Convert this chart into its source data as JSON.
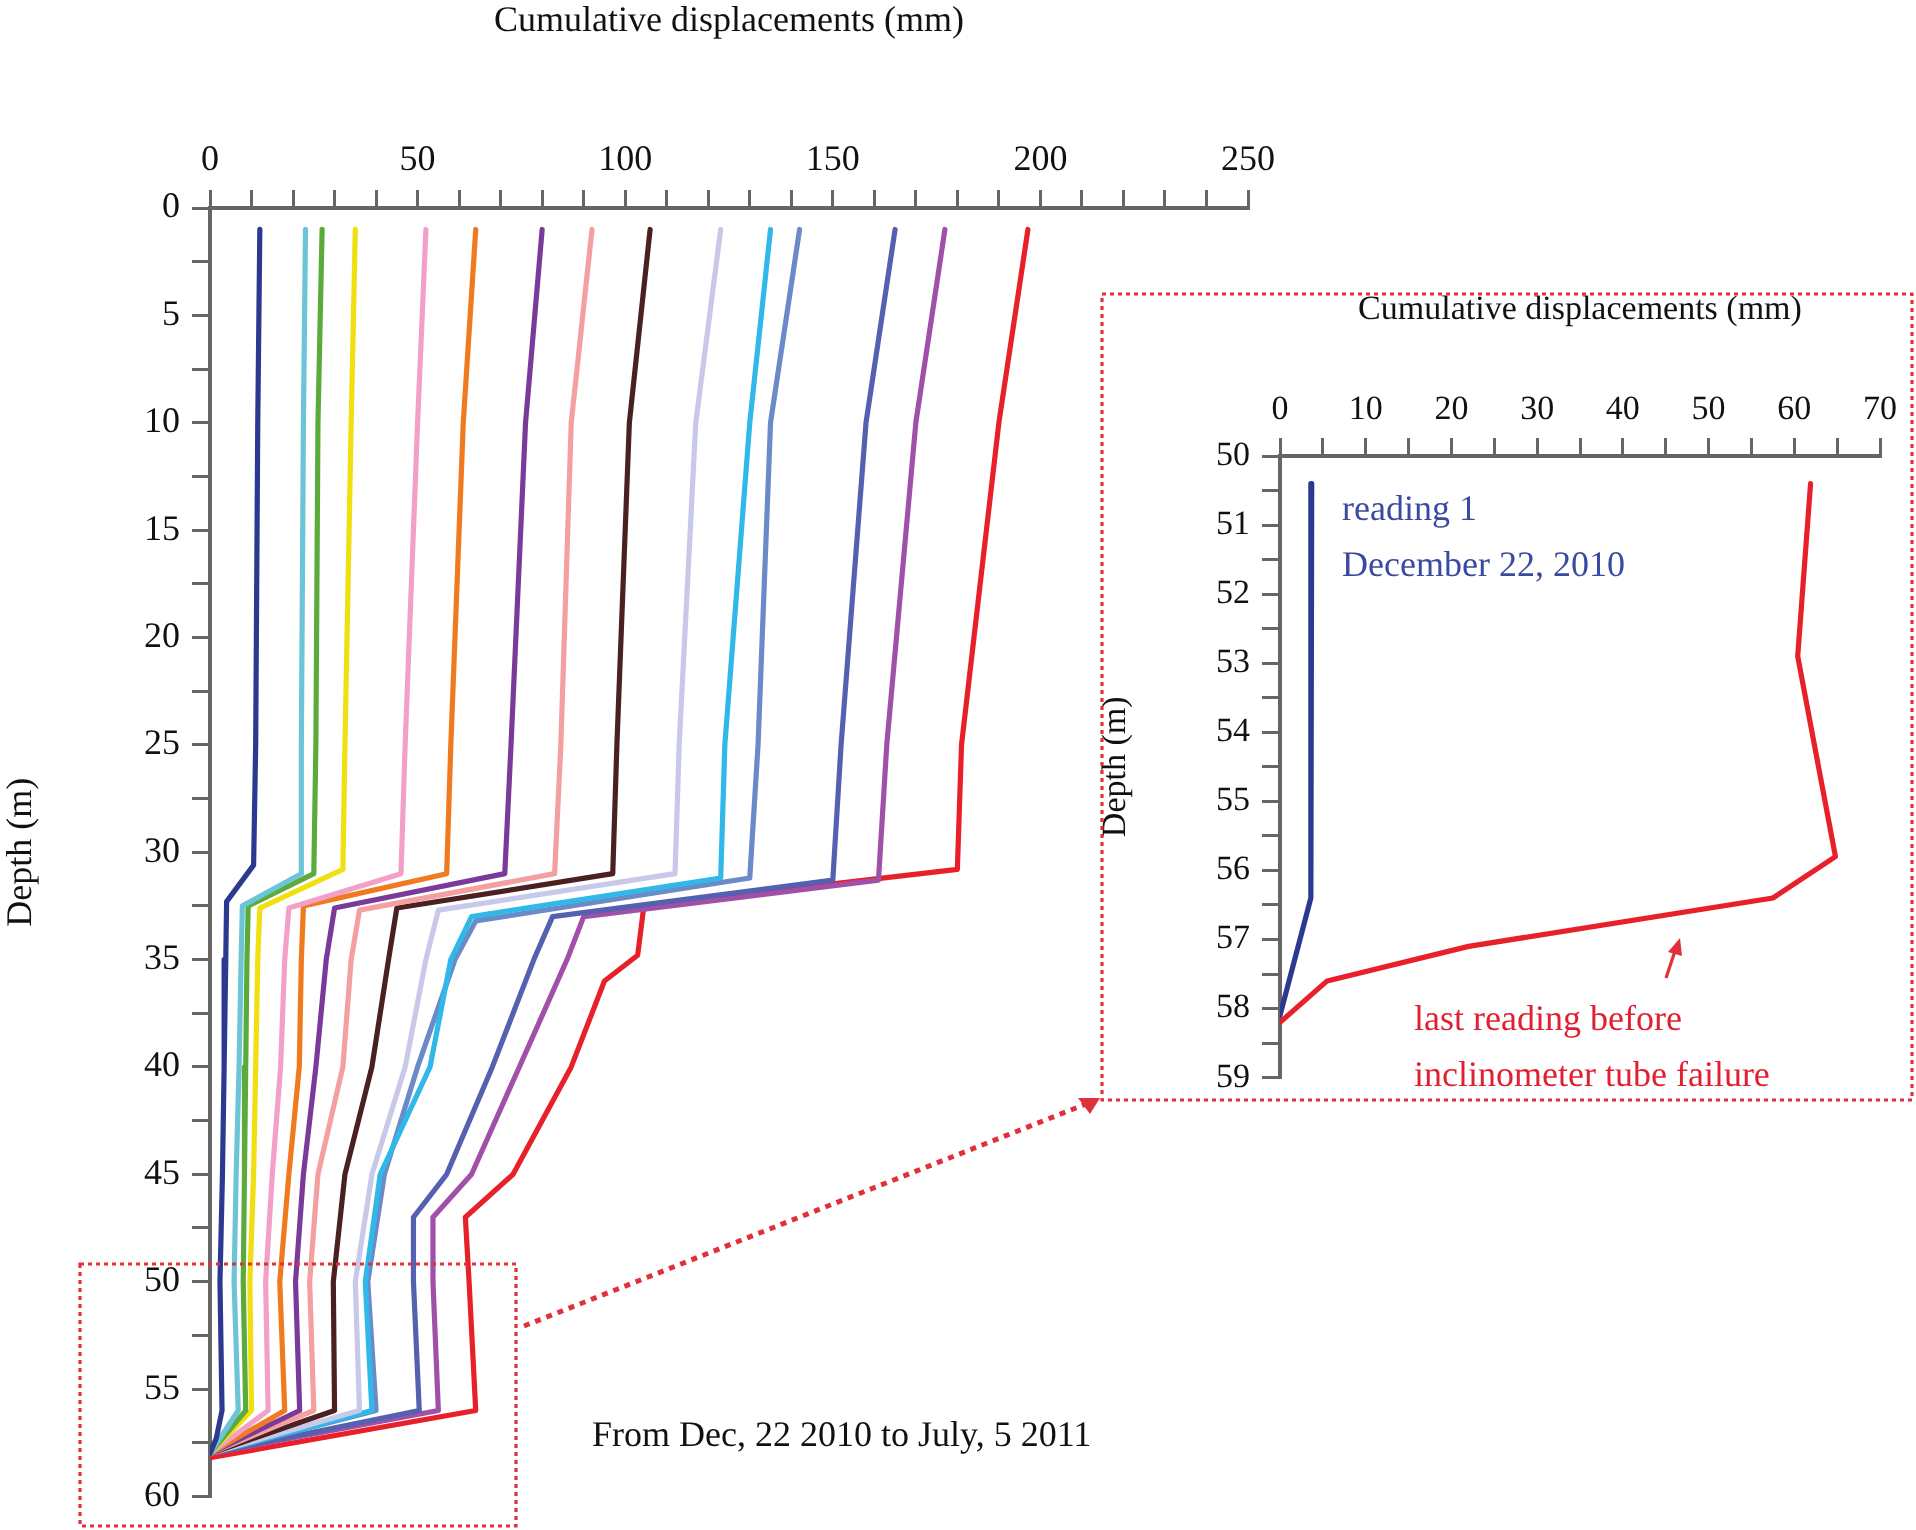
{
  "chart_data": [
    {
      "type": "line",
      "xlabel": "Cumulative displacements (mm)",
      "ylabel": "Depth (m)",
      "xlim": [
        0,
        250
      ],
      "ylim": [
        60,
        0
      ],
      "xticks": [
        0,
        {
          "value": 10,
          "label": null
        },
        {
          "value": 20,
          "label": null
        },
        {
          "value": 30,
          "label": null
        },
        {
          "value": 40,
          "label": null
        },
        50,
        {
          "value": 60,
          "label": null
        },
        {
          "value": 70,
          "label": null
        },
        {
          "value": 80,
          "label": null
        },
        {
          "value": 90,
          "label": null
        },
        100,
        {
          "value": 110,
          "label": null
        },
        {
          "value": 120,
          "label": null
        },
        {
          "value": 130,
          "label": null
        },
        {
          "value": 140,
          "label": null
        },
        150,
        {
          "value": 160,
          "label": null
        },
        {
          "value": 170,
          "label": null
        },
        {
          "value": 180,
          "label": null
        },
        {
          "value": 190,
          "label": null
        },
        200,
        {
          "value": 210,
          "label": null
        },
        {
          "value": 220,
          "label": null
        },
        {
          "value": 230,
          "label": null
        },
        {
          "value": 240,
          "label": null
        },
        250
      ],
      "yticks": [
        0,
        {
          "value": 2.5,
          "label": null
        },
        5,
        {
          "value": 7.5,
          "label": null
        },
        10,
        {
          "value": 12.5,
          "label": null
        },
        15,
        {
          "value": 17.5,
          "label": null
        },
        20,
        {
          "value": 22.5,
          "label": null
        },
        25,
        {
          "value": 27.5,
          "label": null
        },
        30,
        {
          "value": 32.5,
          "label": null
        },
        35,
        {
          "value": 37.5,
          "label": null
        },
        40,
        {
          "value": 42.5,
          "label": null
        },
        45,
        {
          "value": 47.5,
          "label": null
        },
        50,
        {
          "value": 52.5,
          "label": null
        },
        55,
        {
          "value": 57.5,
          "label": null
        },
        60
      ],
      "marker": "none",
      "line_style": "solid",
      "legend": false,
      "grid": false,
      "series": [
        {
          "color": "#2b3990",
          "x": [
            12,
            11.5,
            11,
            10.5,
            4,
            3.8,
            3.4,
            3,
            2.4,
            2.9,
            1.5,
            0
          ],
          "values": [
            1,
            10,
            25,
            30.6,
            32.3,
            35,
            40,
            45,
            50,
            56,
            57.3,
            58
          ]
        },
        {
          "color": "#6cc5d6",
          "x": [
            23,
            22.5,
            22,
            22,
            7.8,
            7.5,
            7,
            6.3,
            5.8,
            6.8,
            0
          ],
          "values": [
            1,
            10,
            25,
            31,
            32.5,
            35,
            40,
            45,
            50,
            56,
            58
          ]
        },
        {
          "color": "#5aab3c",
          "x": [
            27,
            26,
            25.5,
            25,
            9.2,
            8.9,
            8.6,
            8.3,
            8,
            8.6,
            0
          ],
          "values": [
            1,
            10,
            25,
            31,
            32.5,
            35,
            40,
            45,
            50,
            56,
            58
          ]
        },
        {
          "color": "#f0e010",
          "x": [
            35,
            34,
            32.5,
            32,
            12,
            11.5,
            11,
            10.5,
            9.6,
            10,
            0
          ],
          "values": [
            1,
            10,
            25,
            30.8,
            32.6,
            35,
            40,
            45,
            50,
            56,
            58
          ]
        },
        {
          "color": "#f2a0c8",
          "x": [
            52,
            50,
            47,
            46,
            19,
            18,
            17,
            15,
            13.4,
            14,
            0
          ],
          "values": [
            1,
            10,
            25,
            31,
            32.6,
            35,
            40,
            45,
            50,
            56,
            58
          ]
        },
        {
          "color": "#f07a20",
          "x": [
            64,
            61,
            58,
            57,
            22.5,
            22,
            21.5,
            19,
            16.8,
            18,
            0
          ],
          "values": [
            1,
            10,
            25,
            31,
            32.5,
            35,
            40,
            45,
            50,
            56,
            58
          ]
        },
        {
          "color": "#7a3a9a",
          "x": [
            80,
            76,
            72.5,
            71,
            30,
            28,
            25.5,
            22.5,
            20.6,
            21.6,
            0
          ],
          "values": [
            1,
            10,
            25,
            31,
            32.6,
            35,
            40,
            45,
            50,
            56,
            58
          ]
        },
        {
          "color": "#f4a0a0",
          "x": [
            92,
            87,
            84.5,
            83,
            36,
            34,
            32,
            26,
            24,
            25,
            0
          ],
          "values": [
            1,
            10,
            25,
            31,
            32.7,
            35,
            40,
            45,
            50,
            56,
            58
          ]
        },
        {
          "color": "#4a2020",
          "x": [
            106,
            101,
            98,
            97,
            45,
            43,
            39,
            32.5,
            29.7,
            30,
            0
          ],
          "values": [
            1,
            10,
            25,
            31,
            32.6,
            35,
            40,
            45,
            50,
            56,
            58
          ]
        },
        {
          "color": "#c8c8e8",
          "x": [
            123,
            117,
            113,
            112,
            55,
            52,
            47,
            39,
            35,
            36,
            0
          ],
          "values": [
            1,
            10,
            25,
            31,
            32.7,
            35,
            40,
            45,
            50,
            56,
            58
          ]
        },
        {
          "color": "#30b8e8",
          "x": [
            135,
            130,
            124,
            123,
            63,
            58,
            53,
            41,
            37.4,
            39,
            0
          ],
          "values": [
            1,
            10,
            25,
            31.2,
            33,
            35,
            40,
            45,
            50,
            56,
            58
          ]
        },
        {
          "color": "#6a8ac8",
          "x": [
            142,
            135,
            132,
            130,
            64,
            59,
            50,
            42,
            38,
            40,
            0
          ],
          "values": [
            1,
            10,
            25,
            31.2,
            33.2,
            35,
            40,
            45,
            50,
            56,
            58
          ]
        },
        {
          "color": "#5560b0",
          "x": [
            165,
            158,
            152,
            150,
            82.5,
            78,
            68,
            57,
            49,
            49,
            50.4,
            0
          ],
          "values": [
            1,
            10,
            25,
            31.3,
            33,
            35,
            40,
            45,
            47,
            50,
            56,
            58
          ]
        },
        {
          "color": "#a050a8",
          "x": [
            177,
            170,
            163,
            161,
            90,
            86,
            74.5,
            63,
            53.7,
            53.7,
            55,
            0
          ],
          "values": [
            1,
            10,
            25,
            31.3,
            33,
            35,
            40,
            45,
            47,
            50,
            56,
            58
          ]
        },
        {
          "color": "#e8202a",
          "x": [
            197,
            190,
            181,
            180,
            104.5,
            103,
            95,
            87,
            73,
            61.5,
            62.4,
            64,
            0
          ],
          "values": [
            1,
            10,
            25,
            30.8,
            32.5,
            34.8,
            36,
            40,
            45,
            47,
            50,
            56,
            58.2
          ]
        }
      ],
      "annotations": [
        "From Dec, 22 2010 to July, 5 2011"
      ]
    },
    {
      "type": "line",
      "xlabel": "Cumulative displacements (mm)",
      "ylabel": "Depth (m)",
      "xlim": [
        0,
        70
      ],
      "ylim": [
        59,
        50
      ],
      "xticks": [
        0,
        {
          "value": 5,
          "label": null
        },
        10,
        {
          "value": 15,
          "label": null
        },
        20,
        {
          "value": 25,
          "label": null
        },
        30,
        {
          "value": 35,
          "label": null
        },
        40,
        {
          "value": 45,
          "label": null
        },
        50,
        {
          "value": 55,
          "label": null
        },
        60,
        {
          "value": 65,
          "label": null
        },
        70
      ],
      "yticks": [
        50,
        {
          "value": 50.5,
          "label": null
        },
        51,
        {
          "value": 51.5,
          "label": null
        },
        52,
        {
          "value": 52.5,
          "label": null
        },
        53,
        {
          "value": 53.5,
          "label": null
        },
        54,
        {
          "value": 54.5,
          "label": null
        },
        55,
        {
          "value": 55.5,
          "label": null
        },
        56,
        {
          "value": 56.5,
          "label": null
        },
        57,
        {
          "value": 57.5,
          "label": null
        },
        58,
        {
          "value": 58.5,
          "label": null
        },
        59
      ],
      "marker": "none",
      "line_style": "solid",
      "legend": false,
      "grid": false,
      "series": [
        {
          "color": "#2b3990",
          "x": [
            3.7,
            3.7,
            3.5,
            0
          ],
          "values": [
            50.4,
            55.8,
            56.4,
            58.1
          ]
        },
        {
          "color": "#e8202a",
          "x": [
            61.9,
            60.4,
            64.8,
            57.5,
            22,
            5.5,
            0
          ],
          "values": [
            50.4,
            52.9,
            55.8,
            56.4,
            57.1,
            57.6,
            58.2
          ]
        }
      ],
      "annotations": [
        "reading 1\nDecember 22, 2010",
        "last reading before\ninclinometer tube failure"
      ]
    }
  ]
}
